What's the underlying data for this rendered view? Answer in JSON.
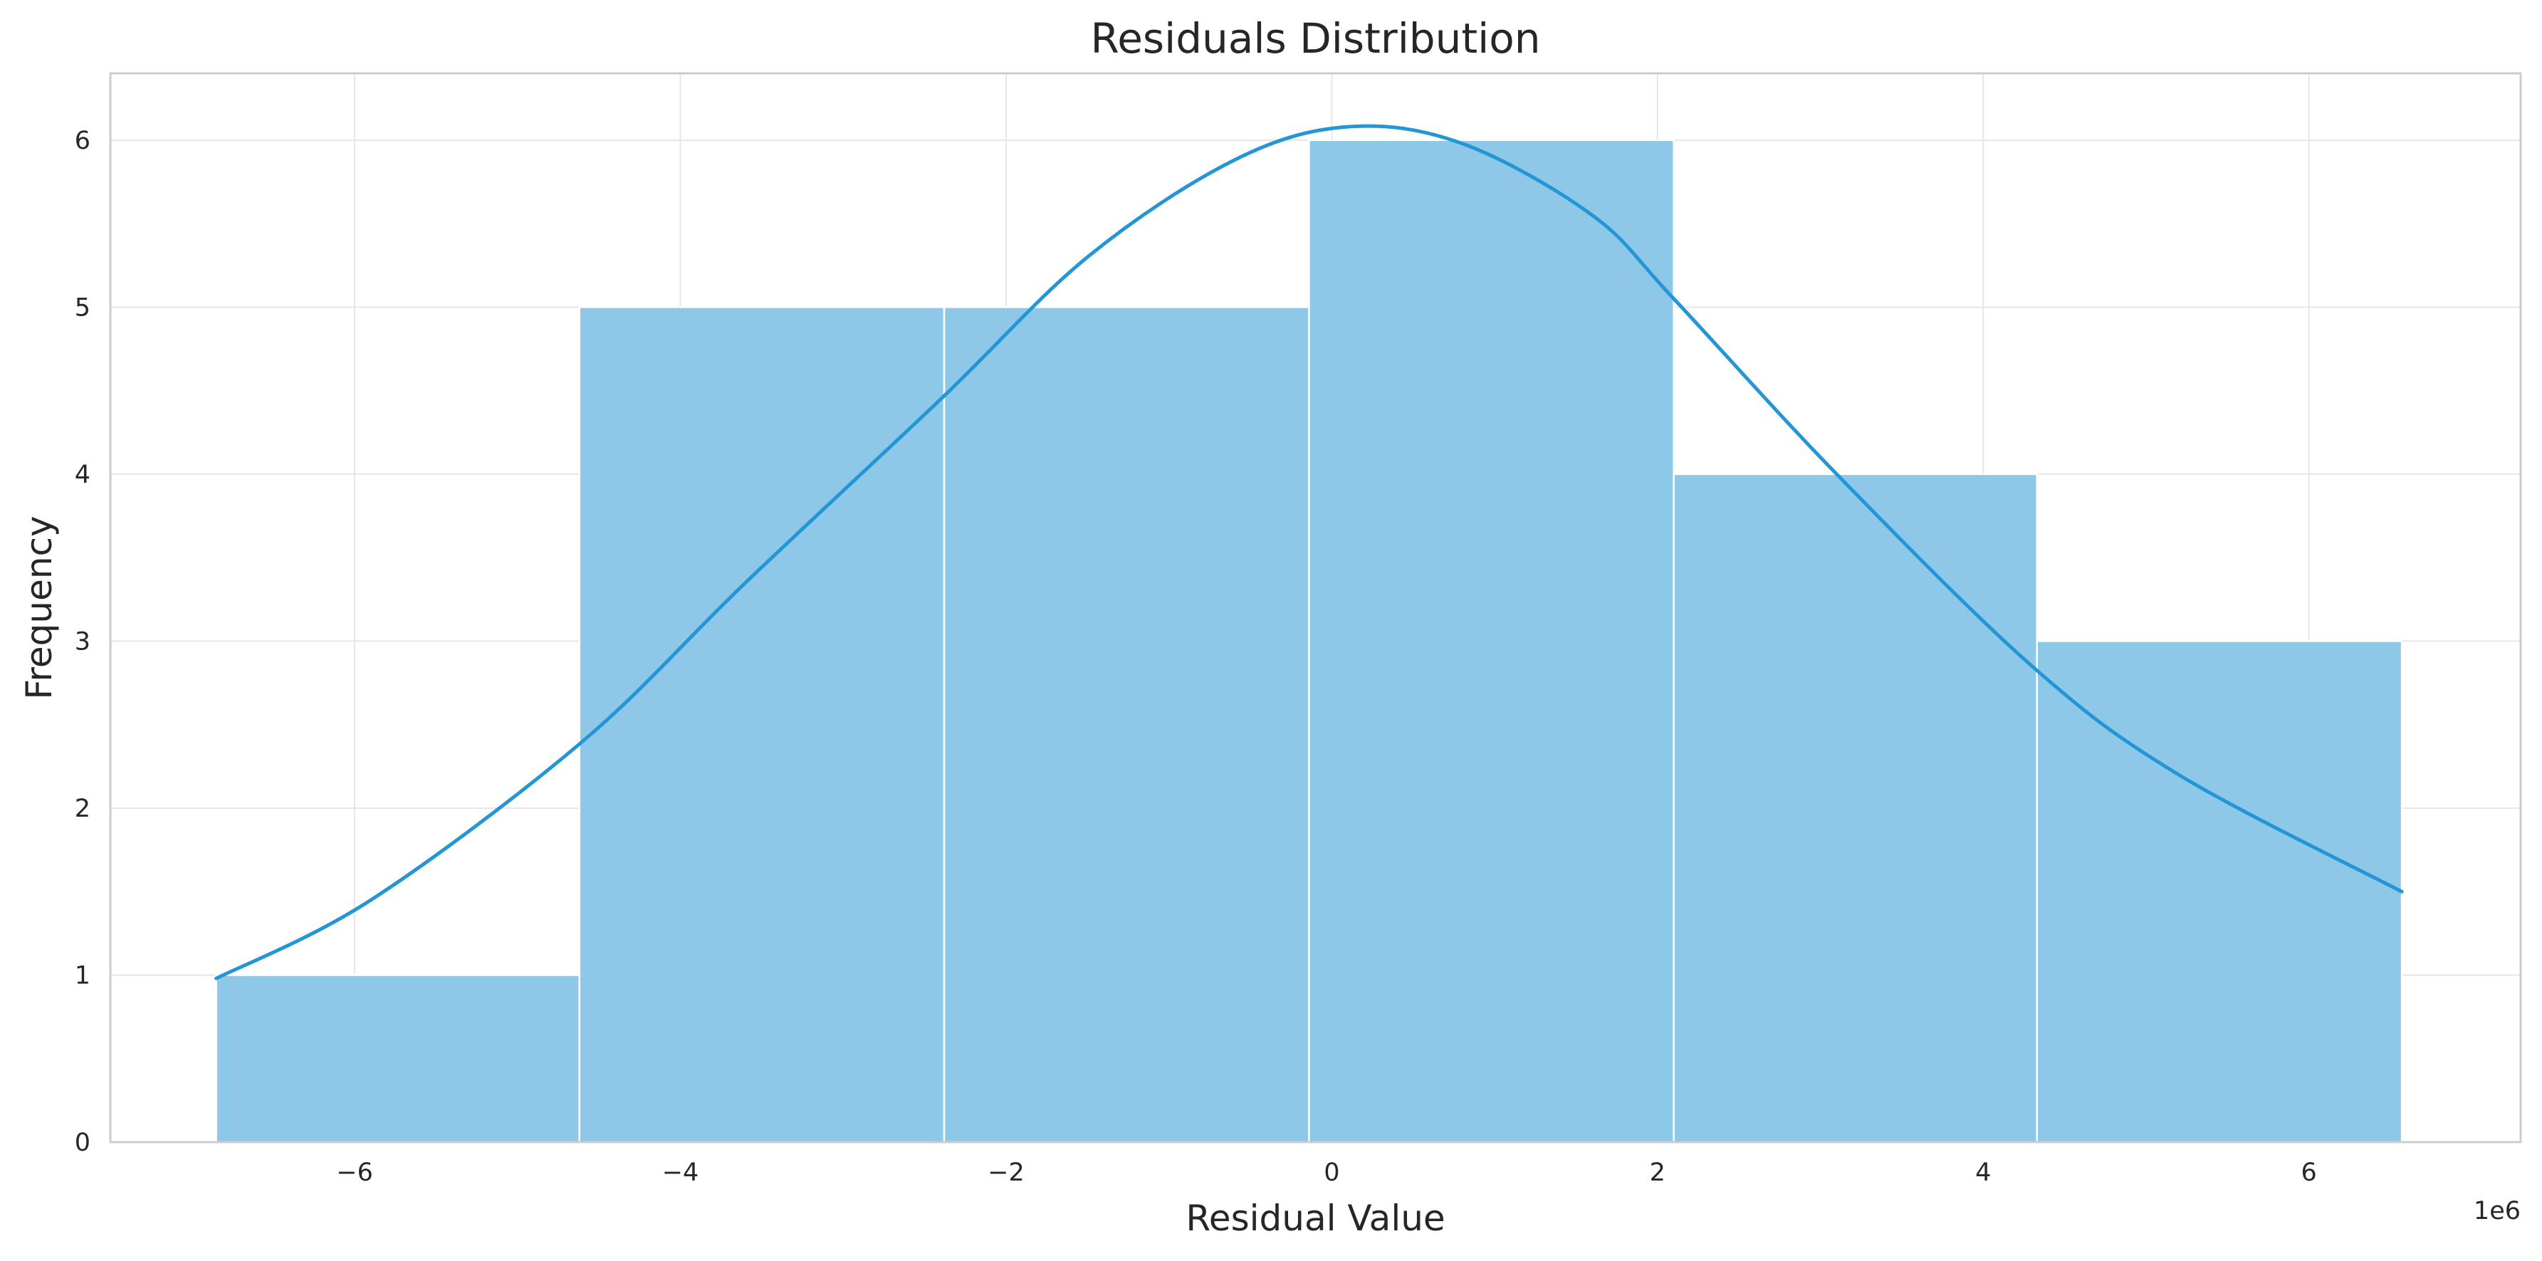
{
  "chart_data": {
    "type": "bar",
    "subtype": "histogram",
    "title": "Residuals Distribution",
    "xlabel": "Residual Value",
    "ylabel": "Frequency",
    "x_offset_label": "1e6",
    "xlim": [
      -7.5,
      7.3
    ],
    "ylim": [
      0,
      6.4
    ],
    "xticks": [
      -6,
      -4,
      -2,
      0,
      2,
      4,
      6
    ],
    "xtick_labels": [
      "−6",
      "−4",
      "−2",
      "0",
      "2",
      "4",
      "6"
    ],
    "yticks": [
      0,
      1,
      2,
      3,
      4,
      5,
      6
    ],
    "ytick_labels": [
      "0",
      "1",
      "2",
      "3",
      "4",
      "5",
      "6"
    ],
    "grid": true,
    "bins": [
      {
        "x0": -6.85,
        "x1": -4.62,
        "count": 1
      },
      {
        "x0": -4.62,
        "x1": -2.38,
        "count": 5
      },
      {
        "x0": -2.38,
        "x1": -0.14,
        "count": 5
      },
      {
        "x0": -0.14,
        "x1": 2.1,
        "count": 6
      },
      {
        "x0": 2.1,
        "x1": 4.33,
        "count": 4
      },
      {
        "x0": 4.33,
        "x1": 6.57,
        "count": 3
      }
    ],
    "kde": {
      "x": [
        -6.85,
        -5.9,
        -4.6,
        -3.6,
        -2.4,
        -1.5,
        -0.6,
        0.1,
        0.8,
        1.6,
        2.1,
        3.1,
        4.3,
        5.2,
        6.57
      ],
      "y": [
        0.98,
        1.45,
        2.4,
        3.35,
        4.45,
        5.3,
        5.88,
        6.08,
        5.98,
        5.55,
        5.05,
        4.0,
        2.85,
        2.2,
        1.5
      ]
    },
    "colors": {
      "bar_fill": "#8ec8e8",
      "bar_edge": "#ffffff",
      "kde_line": "#2596d5",
      "grid": "#e6e6e6",
      "spine": "#cccccc"
    }
  }
}
